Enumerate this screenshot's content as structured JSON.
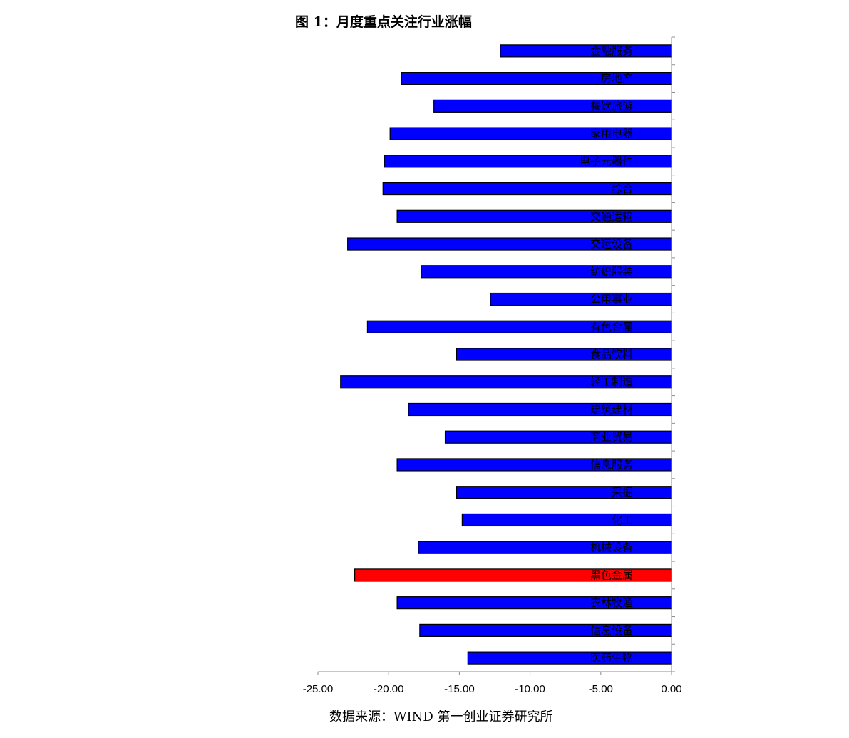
{
  "title": "图 1：月度重点关注行业涨幅",
  "source": "数据来源：WIND 第一创业证券研究所",
  "chart_data": {
    "type": "bar",
    "orientation": "horizontal",
    "title": "图 1：月度重点关注行业涨幅",
    "xlim": [
      -25,
      0
    ],
    "x_ticks": [
      "-25.00",
      "-20.00",
      "-15.00",
      "-10.00",
      "-5.00",
      "0.00"
    ],
    "categories": [
      "金融服务",
      "房地产",
      "餐饮旅游",
      "家用电器",
      "电子元器件",
      "综合",
      "交通运输",
      "交运设备",
      "纺织服装",
      "公用事业",
      "有色金属",
      "食品饮料",
      "轻工制造",
      "建筑建材",
      "商业贸易",
      "信息服务",
      "采掘",
      "化工",
      "机械设备",
      "黑色金属",
      "农林牧渔",
      "信息设备",
      "医药生物"
    ],
    "values": [
      -12.1,
      -19.1,
      -16.8,
      -19.9,
      -20.3,
      -20.4,
      -19.4,
      -22.9,
      -17.7,
      -12.8,
      -21.5,
      -15.2,
      -23.4,
      -18.6,
      -16.0,
      -19.4,
      -15.2,
      -14.8,
      -17.9,
      -22.4,
      -19.4,
      -17.8,
      -14.4
    ],
    "colors": {
      "default": "#0000ff",
      "highlight": "#ff0000",
      "highlight_category": "黑色金属",
      "border": "#000000",
      "axis": "#8c8c8c"
    }
  }
}
